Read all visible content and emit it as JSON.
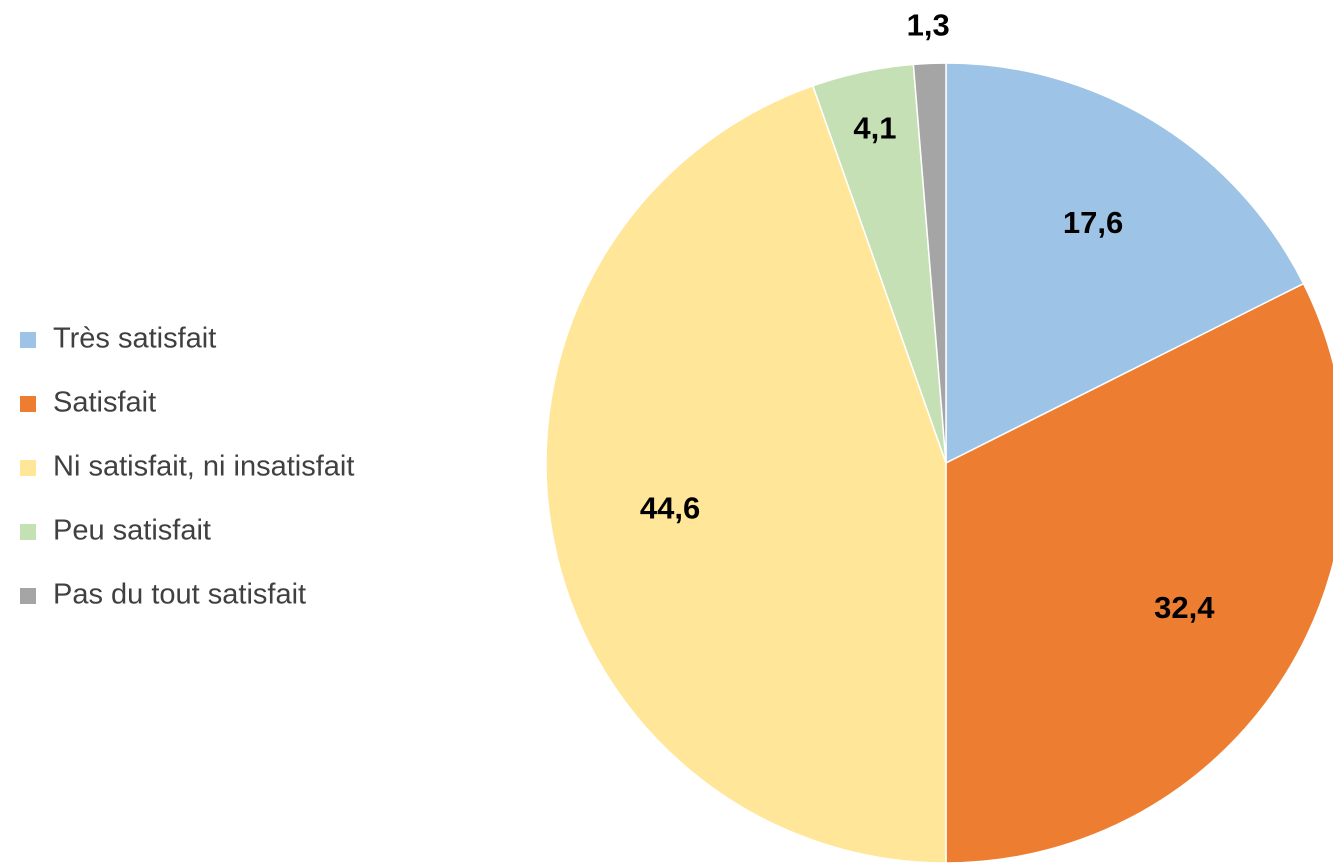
{
  "chart_data": {
    "type": "pie",
    "categories": [
      "Très satisfait",
      "Satisfait",
      "Ni satisfait, ni insatisfait",
      "Peu satisfait",
      "Pas du tout satisfait"
    ],
    "values": [
      17.6,
      32.4,
      44.6,
      4.1,
      1.3
    ],
    "value_labels": [
      "17,6",
      "32,4",
      "44,6",
      "4,1",
      "1,3"
    ],
    "colors": [
      "#9dc3e6",
      "#ed7d31",
      "#ffe699",
      "#c5e0b4",
      "#a5a5a5"
    ],
    "legend": "left"
  }
}
